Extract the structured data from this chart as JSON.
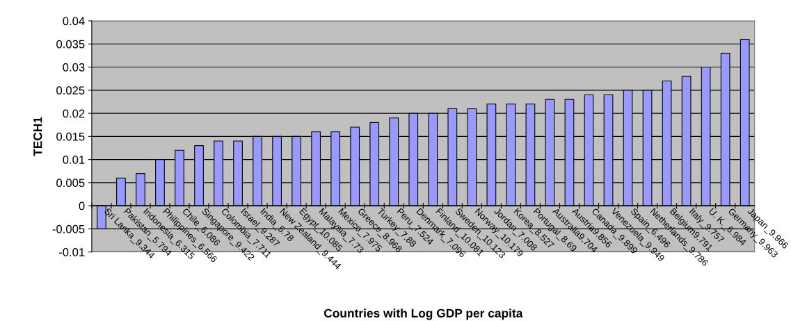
{
  "chart_data": {
    "type": "bar",
    "xlabel": "Countries with Log GDP per capita",
    "ylabel": "TECH1",
    "categories": [
      "Sri Lanka_9.344",
      "Pakistan_5.794",
      "Indonesia_6.315",
      "Philippines_6.566",
      "Chile_6.086",
      "Singapore_9.422",
      "Colombia_7.711",
      "Israel_9.287",
      "India_5.78",
      "New Zealand_9.444",
      "Egypt_10.085",
      "Malaysia_7.73",
      "Mexico_7.975",
      "Greece_8.968",
      "Turkey_7.88",
      "Peru_7.524",
      "Denmark_7.096",
      "Finland_10.081",
      "Sweden_10.123",
      "Norway_10.179",
      "Jordan_7.008",
      "Korea_8.527",
      "Portugal_8.69",
      "Australia9.704",
      "Austria9.856",
      "Canada_9.899",
      "Venezuela_9.949",
      "Spain_6.496",
      "Netherlands_9.786",
      "Belgium9.791",
      "Italy_9.757",
      "U. K._6.984",
      "Germany_9.963",
      "Japan_9.966"
    ],
    "values": [
      -0.005,
      0.006,
      0.007,
      0.01,
      0.012,
      0.013,
      0.014,
      0.014,
      0.015,
      0.015,
      0.015,
      0.016,
      0.016,
      0.017,
      0.018,
      0.019,
      0.02,
      0.02,
      0.021,
      0.021,
      0.022,
      0.022,
      0.022,
      0.023,
      0.023,
      0.024,
      0.024,
      0.025,
      0.025,
      0.027,
      0.028,
      0.03,
      0.033,
      0.036
    ],
    "color": "#9999ff",
    "ylim": [
      -0.01,
      0.04
    ],
    "yticks": [
      -0.01,
      -0.005,
      0,
      0.005,
      0.01,
      0.015,
      0.02,
      0.025,
      0.03,
      0.035,
      0.04
    ],
    "grid": "y",
    "legend": false
  }
}
